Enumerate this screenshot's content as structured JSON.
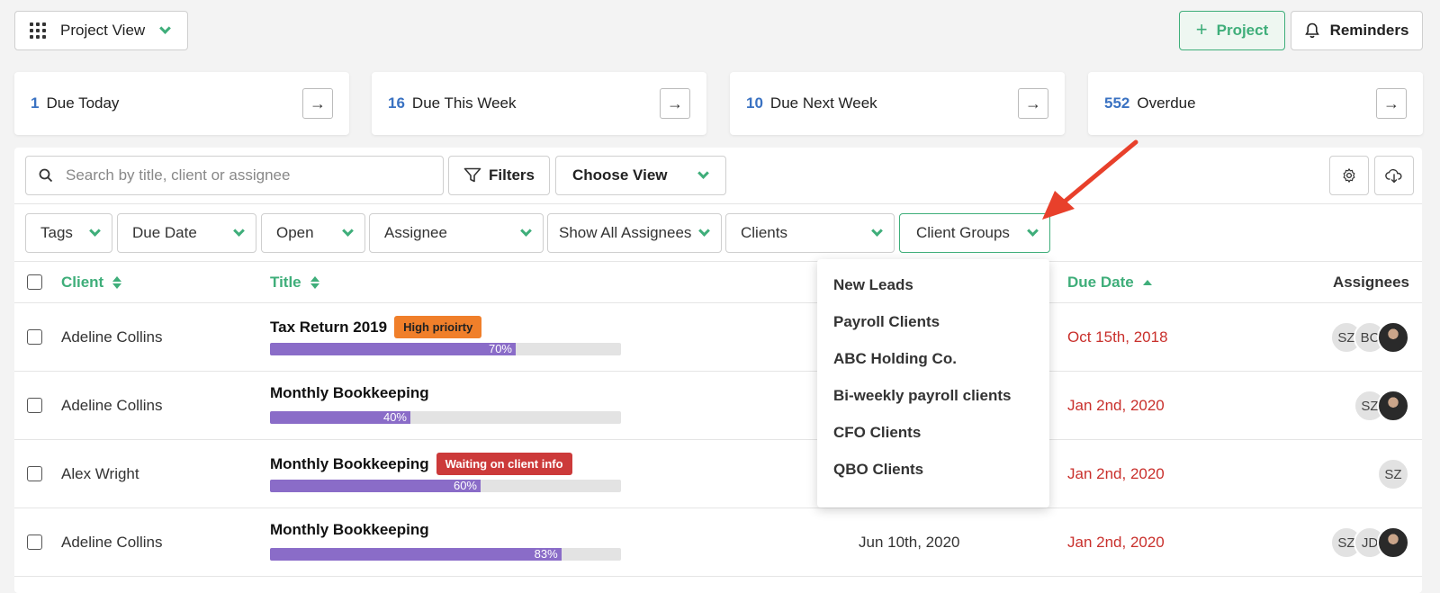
{
  "header": {
    "view_label": "Project View",
    "add_project_label": "Project",
    "reminders_label": "Reminders"
  },
  "stats": [
    {
      "count": "1",
      "label": "Due Today"
    },
    {
      "count": "16",
      "label": "Due This Week"
    },
    {
      "count": "10",
      "label": "Due Next Week"
    },
    {
      "count": "552",
      "label": "Overdue"
    }
  ],
  "toolbar": {
    "search_placeholder": "Search by title, client or assignee",
    "filters_label": "Filters",
    "choose_view_label": "Choose View"
  },
  "filters": [
    "Tags",
    "Due Date",
    "Open",
    "Assignee",
    "Show All Assignees",
    "Clients",
    "Client Groups"
  ],
  "table": {
    "headers": {
      "client": "Client",
      "title": "Title",
      "due_date": "Due Date",
      "assignees": "Assignees"
    },
    "rows": [
      {
        "client": "Adeline Collins",
        "title": "Tax Return 2019",
        "badge": "High prioirty",
        "progress": 70,
        "progress_label": "70%",
        "start": "",
        "due": "Oct 15th, 2018",
        "assignees": [
          "SZ",
          "BC"
        ]
      },
      {
        "client": "Adeline Collins",
        "title": "Monthly Bookkeeping",
        "badge": "",
        "progress": 40,
        "progress_label": "40%",
        "start": "",
        "due": "Jan 2nd, 2020",
        "assignees": [
          "SZ"
        ]
      },
      {
        "client": "Alex Wright",
        "title": "Monthly Bookkeeping",
        "badge": "Waiting on client info",
        "progress": 60,
        "progress_label": "60%",
        "start": "",
        "due": "Jan 2nd, 2020",
        "assignees": [
          "SZ"
        ]
      },
      {
        "client": "Adeline Collins",
        "title": "Monthly Bookkeeping",
        "badge": "",
        "progress": 83,
        "progress_label": "83%",
        "start": "Jun 10th, 2020",
        "due": "Jan 2nd, 2020",
        "assignees": [
          "SZ",
          "JD"
        ]
      }
    ]
  },
  "client_groups_menu": [
    "New Leads",
    "Payroll Clients",
    "ABC Holding Co.",
    "Bi-weekly payroll clients",
    "CFO Clients",
    "QBO Clients"
  ],
  "colors": {
    "accent": "#3fae7a",
    "count": "#3a72c2",
    "overdue": "#c9302c",
    "progress": "#8a6cc8",
    "arrow": "#e8402b"
  }
}
